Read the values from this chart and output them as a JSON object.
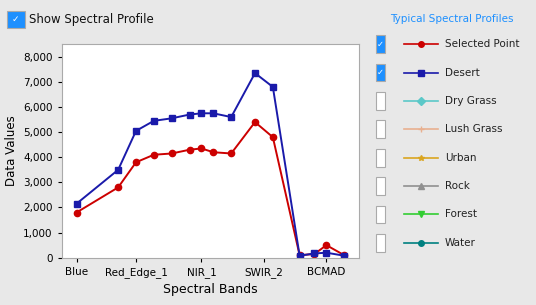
{
  "header_left": "Show Spectral Profile",
  "header_right": "Typical Spectral Profiles",
  "xlabel": "Spectral Bands",
  "ylabel": "Data Values",
  "x_labels": [
    "Blue",
    "Red_Edge_1",
    "NIR_1",
    "SWIR_2",
    "BCMAD"
  ],
  "x_positions": [
    0,
    0.7,
    1.0,
    1.3,
    1.6,
    1.9,
    2.1,
    2.3,
    2.6,
    3.0,
    3.3,
    3.75,
    4.0,
    4.2,
    4.5
  ],
  "xtick_positions": [
    0,
    1.0,
    2.1,
    3.15,
    4.2
  ],
  "selected_point": {
    "label": "Selected Point",
    "color": "#cc0000",
    "marker": "o",
    "values": [
      1800,
      2800,
      3800,
      4100,
      4150,
      4300,
      4350,
      4200,
      4150,
      5400,
      4800,
      100,
      150,
      500,
      100
    ]
  },
  "desert": {
    "label": "Desert",
    "color": "#1a1aaa",
    "marker": "s",
    "values": [
      2150,
      3500,
      5050,
      5450,
      5550,
      5700,
      5750,
      5750,
      5600,
      7350,
      6800,
      80,
      170,
      200,
      80
    ]
  },
  "legend_items": [
    {
      "label": "Dry Grass",
      "color": "#5bc8c8",
      "marker": "D",
      "checked": false
    },
    {
      "label": "Lush Grass",
      "color": "#e8b090",
      "marker": "+",
      "checked": false
    },
    {
      "label": "Urban",
      "color": "#DAA520",
      "marker": "*",
      "checked": false
    },
    {
      "label": "Rock",
      "color": "#909090",
      "marker": "^",
      "checked": false
    },
    {
      "label": "Forest",
      "color": "#32CD32",
      "marker": "v",
      "checked": false
    },
    {
      "label": "Water",
      "color": "#008080",
      "marker": "o",
      "checked": false
    }
  ],
  "ylim": [
    0,
    8500
  ],
  "yticks": [
    0,
    1000,
    2000,
    3000,
    4000,
    5000,
    6000,
    7000,
    8000
  ],
  "background_color": "#e8e8e8",
  "plot_bg_color": "#ffffff",
  "header_right_color": "#1E90FF",
  "checkbox_color": "#1E90FF"
}
